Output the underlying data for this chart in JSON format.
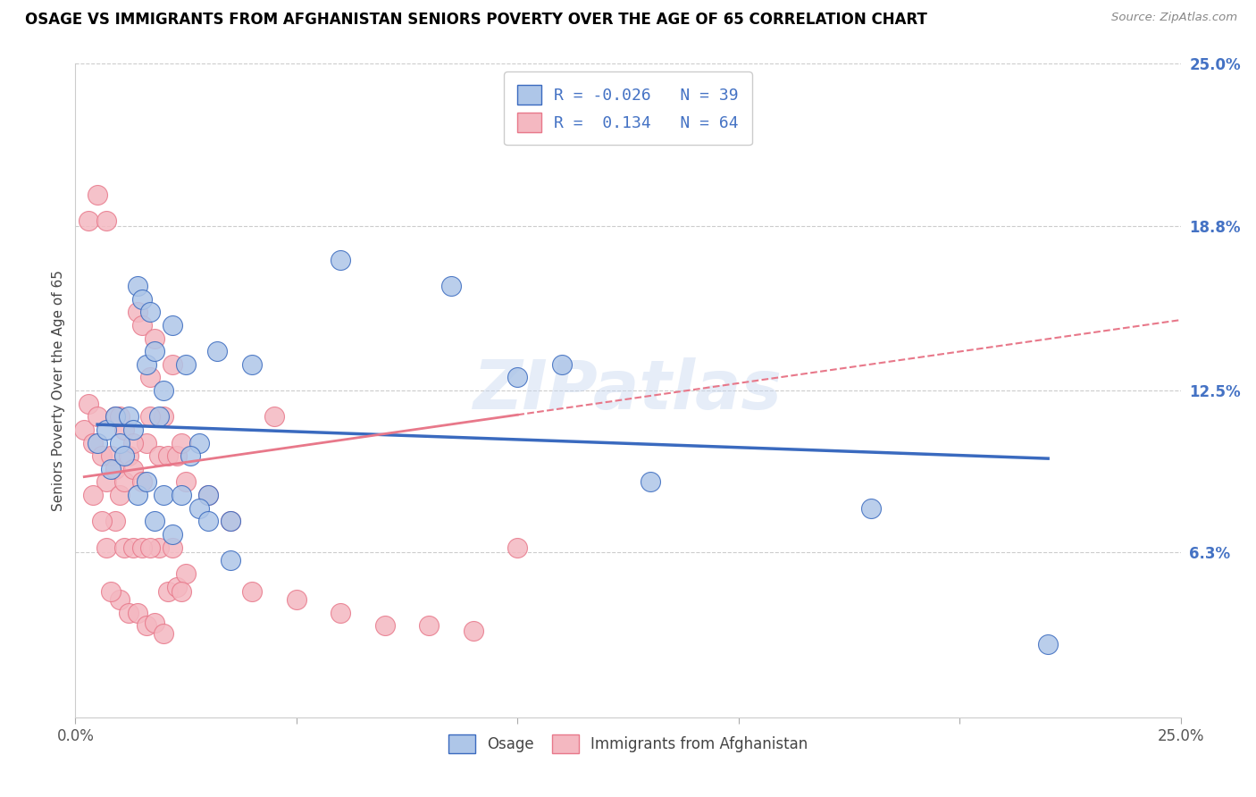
{
  "title": "OSAGE VS IMMIGRANTS FROM AFGHANISTAN SENIORS POVERTY OVER THE AGE OF 65 CORRELATION CHART",
  "source": "Source: ZipAtlas.com",
  "ylabel": "Seniors Poverty Over the Age of 65",
  "xlim": [
    0.0,
    0.25
  ],
  "ylim": [
    0.0,
    0.25
  ],
  "xtick_positions": [
    0.0,
    0.05,
    0.1,
    0.15,
    0.2,
    0.25
  ],
  "xtick_labels_show": [
    "0.0%",
    "",
    "",
    "",
    "",
    "25.0%"
  ],
  "yticks_right": [
    0.063,
    0.125,
    0.188,
    0.25
  ],
  "yticklabels_right": [
    "6.3%",
    "12.5%",
    "18.8%",
    "25.0%"
  ],
  "osage_R": -0.026,
  "osage_N": 39,
  "afghanistan_R": 0.134,
  "afghanistan_N": 64,
  "osage_color": "#aec6e8",
  "afghanistan_color": "#f4b8c1",
  "osage_trend_color": "#3a6abf",
  "afghanistan_trend_color": "#e8788a",
  "legend_label_osage": "Osage",
  "legend_label_afghanistan": "Immigrants from Afghanistan",
  "watermark": "ZIPatlas",
  "osage_x": [
    0.005,
    0.007,
    0.008,
    0.009,
    0.01,
    0.011,
    0.012,
    0.013,
    0.014,
    0.015,
    0.016,
    0.017,
    0.018,
    0.019,
    0.02,
    0.022,
    0.025,
    0.028,
    0.03,
    0.032,
    0.035,
    0.04,
    0.06,
    0.085,
    0.1,
    0.11,
    0.13,
    0.18,
    0.22,
    0.014,
    0.016,
    0.018,
    0.02,
    0.022,
    0.024,
    0.026,
    0.028,
    0.03,
    0.035
  ],
  "osage_y": [
    0.105,
    0.11,
    0.095,
    0.115,
    0.105,
    0.1,
    0.115,
    0.11,
    0.165,
    0.16,
    0.135,
    0.155,
    0.14,
    0.115,
    0.125,
    0.15,
    0.135,
    0.105,
    0.085,
    0.14,
    0.075,
    0.135,
    0.175,
    0.165,
    0.13,
    0.135,
    0.09,
    0.08,
    0.028,
    0.085,
    0.09,
    0.075,
    0.085,
    0.07,
    0.085,
    0.1,
    0.08,
    0.075,
    0.06
  ],
  "afghanistan_x": [
    0.002,
    0.003,
    0.004,
    0.005,
    0.006,
    0.007,
    0.008,
    0.009,
    0.01,
    0.011,
    0.012,
    0.013,
    0.014,
    0.015,
    0.016,
    0.017,
    0.018,
    0.019,
    0.02,
    0.021,
    0.022,
    0.023,
    0.024,
    0.025,
    0.003,
    0.005,
    0.007,
    0.009,
    0.011,
    0.013,
    0.015,
    0.017,
    0.019,
    0.021,
    0.023,
    0.025,
    0.03,
    0.035,
    0.04,
    0.045,
    0.05,
    0.06,
    0.07,
    0.08,
    0.09,
    0.1,
    0.01,
    0.012,
    0.014,
    0.016,
    0.018,
    0.02,
    0.022,
    0.024,
    0.007,
    0.009,
    0.011,
    0.013,
    0.015,
    0.017,
    0.004,
    0.006,
    0.008,
    0.01
  ],
  "afghanistan_y": [
    0.11,
    0.12,
    0.105,
    0.115,
    0.1,
    0.09,
    0.1,
    0.095,
    0.085,
    0.09,
    0.1,
    0.095,
    0.155,
    0.15,
    0.105,
    0.13,
    0.145,
    0.1,
    0.115,
    0.1,
    0.135,
    0.1,
    0.105,
    0.09,
    0.19,
    0.2,
    0.19,
    0.115,
    0.11,
    0.105,
    0.09,
    0.115,
    0.065,
    0.048,
    0.05,
    0.055,
    0.085,
    0.075,
    0.048,
    0.115,
    0.045,
    0.04,
    0.035,
    0.035,
    0.033,
    0.065,
    0.045,
    0.04,
    0.04,
    0.035,
    0.036,
    0.032,
    0.065,
    0.048,
    0.065,
    0.075,
    0.065,
    0.065,
    0.065,
    0.065,
    0.085,
    0.075,
    0.048,
    0.115
  ],
  "osage_trend_x": [
    0.005,
    0.22
  ],
  "osage_trend_y": [
    0.112,
    0.099
  ],
  "afghanistan_trend_x": [
    0.002,
    0.25
  ],
  "afghanistan_trend_y": [
    0.092,
    0.152
  ]
}
